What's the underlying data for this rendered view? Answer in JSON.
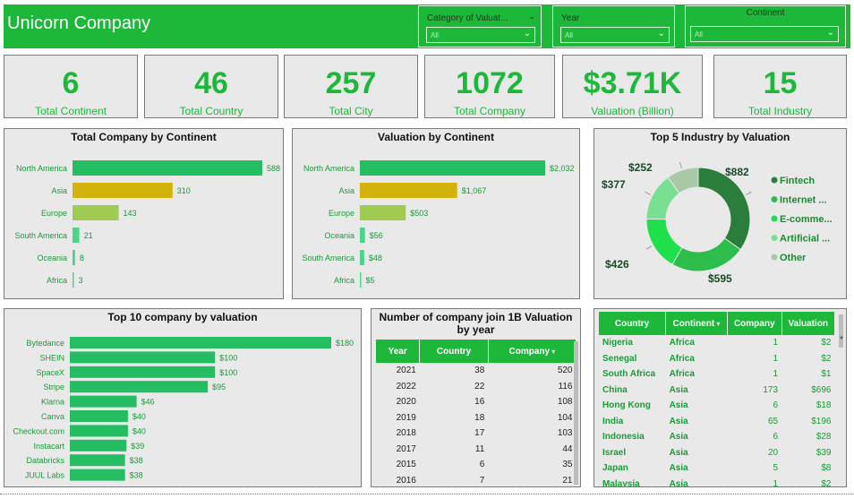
{
  "header": {
    "title": "Unicorn Company",
    "slicers": [
      {
        "label": "Category of Valuat...",
        "value": "All"
      },
      {
        "label": "Year",
        "value": "All"
      },
      {
        "label": "Continent",
        "value": "All"
      }
    ]
  },
  "kpis": [
    {
      "value": "6",
      "label": "Total Continent"
    },
    {
      "value": "46",
      "label": "Total Country"
    },
    {
      "value": "257",
      "label": "Total City"
    },
    {
      "value": "1072",
      "label": "Total Company"
    },
    {
      "value": "$3.71K",
      "label": "Valuation (Billion)"
    },
    {
      "value": "15",
      "label": "Total Industry"
    }
  ],
  "colors": {
    "green": "#1db83a",
    "north_america": "#24bd62",
    "asia": "#d4b20c",
    "europe": "#9ecb50",
    "other": "#4bd58a"
  },
  "chart_data": [
    {
      "type": "bar",
      "title": "Total Company by Continent",
      "categories": [
        "North America",
        "Asia",
        "Europe",
        "South America",
        "Oceania",
        "Africa"
      ],
      "values": [
        588,
        310,
        143,
        21,
        8,
        3
      ],
      "labels": [
        "588",
        "310",
        "143",
        "21",
        "8",
        "3"
      ]
    },
    {
      "type": "bar",
      "title": "Valuation by Continent",
      "categories": [
        "North America",
        "Asia",
        "Europe",
        "Oceania",
        "South America",
        "Africa"
      ],
      "values": [
        2032,
        1067,
        503,
        56,
        48,
        5
      ],
      "labels": [
        "$2,032",
        "$1,067",
        "$503",
        "$56",
        "$48",
        "$5"
      ]
    },
    {
      "type": "pie",
      "title": "Top 5 Industry by Valuation",
      "categories": [
        "Fintech",
        "Internet ...",
        "E-comme...",
        "Artificial ...",
        "Other"
      ],
      "values": [
        882,
        595,
        426,
        377,
        252
      ],
      "labels": [
        "$882",
        "$595",
        "$426",
        "$377",
        "$252"
      ],
      "colors": [
        "#2a7d3a",
        "#2ebd4a",
        "#1ee04a",
        "#78e090",
        "#a8c8a8"
      ],
      "legend": "right"
    },
    {
      "type": "bar",
      "title": "Top 10 company by valuation",
      "categories": [
        "Bytedance",
        "SHEIN",
        "SpaceX",
        "Stripe",
        "Klarna",
        "Canva",
        "Checkout.com",
        "Instacart",
        "Databricks",
        "JUUL Labs"
      ],
      "values": [
        180,
        100,
        100,
        95,
        46,
        40,
        40,
        39,
        38,
        38
      ],
      "labels": [
        "$180",
        "$100",
        "$100",
        "$95",
        "$46",
        "$40",
        "$40",
        "$39",
        "$38",
        "$38"
      ]
    },
    {
      "type": "table",
      "title": "Number of company join 1B Valuation by year",
      "columns": [
        "Year",
        "Country",
        "Company"
      ],
      "rows": [
        [
          "2021",
          "38",
          "520"
        ],
        [
          "2022",
          "22",
          "116"
        ],
        [
          "2020",
          "16",
          "108"
        ],
        [
          "2019",
          "18",
          "104"
        ],
        [
          "2018",
          "17",
          "103"
        ],
        [
          "2017",
          "11",
          "44"
        ],
        [
          "2015",
          "6",
          "35"
        ],
        [
          "2016",
          "7",
          "21"
        ]
      ]
    },
    {
      "type": "table",
      "columns": [
        "Country",
        "Continent",
        "Company",
        "Valuation"
      ],
      "rows": [
        [
          "Nigeria",
          "Africa",
          "1",
          "$2"
        ],
        [
          "Senegal",
          "Africa",
          "1",
          "$2"
        ],
        [
          "South Africa",
          "Africa",
          "1",
          "$1"
        ],
        [
          "China",
          "Asia",
          "173",
          "$696"
        ],
        [
          "Hong Kong",
          "Asia",
          "6",
          "$18"
        ],
        [
          "India",
          "Asia",
          "65",
          "$196"
        ],
        [
          "Indonesia",
          "Asia",
          "6",
          "$28"
        ],
        [
          "Israel",
          "Asia",
          "20",
          "$39"
        ],
        [
          "Japan",
          "Asia",
          "5",
          "$8"
        ],
        [
          "Malaysia",
          "Asia",
          "1",
          "$2"
        ]
      ]
    }
  ]
}
